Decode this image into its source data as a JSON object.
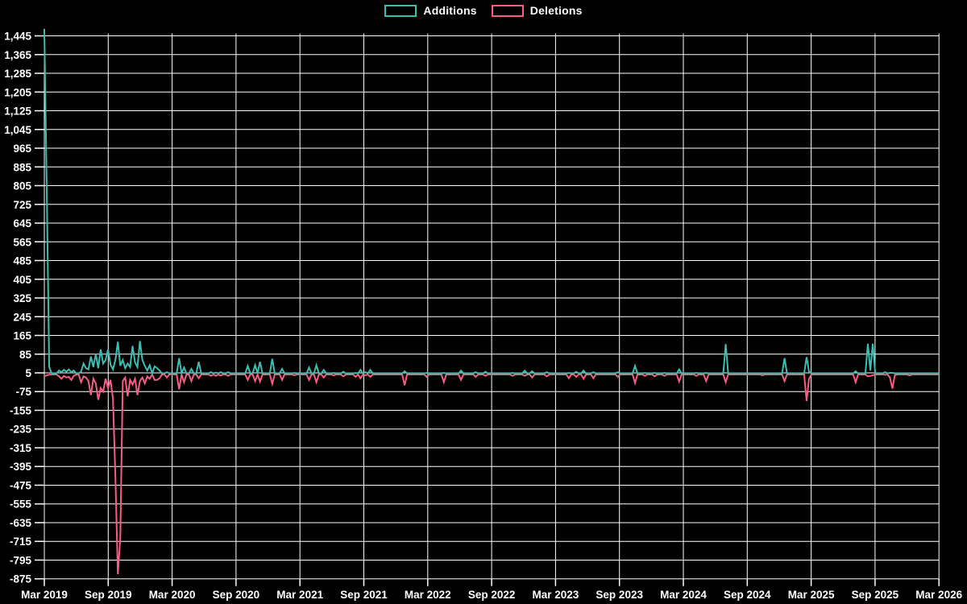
{
  "legend": {
    "additions_label": "Additions",
    "deletions_label": "Deletions"
  },
  "colors": {
    "background": "#000000",
    "grid": "#ffffff",
    "axis_text": "#ffffff",
    "additions": "#3dbdb2",
    "deletions": "#f85c86"
  },
  "chart_data": {
    "type": "line",
    "title": "",
    "xlabel": "",
    "ylabel": "",
    "legend_position": "top-center",
    "grid": true,
    "x_axis": {
      "tick_labels": [
        "Mar 2019",
        "Sep 2019",
        "Mar 2020",
        "Sep 2020",
        "Mar 2021",
        "Sep 2021",
        "Mar 2022",
        "Sep 2022",
        "Mar 2023",
        "Sep 2023",
        "Mar 2024",
        "Sep 2024",
        "Mar 2025",
        "Sep 2025",
        "Mar 2026"
      ],
      "unit": "weeks since Mar 2019",
      "weeks_total": 366
    },
    "y_axis": {
      "tick_labels": [
        "1,445",
        "1,365",
        "1,285",
        "1,205",
        "1,125",
        "1,045",
        "965",
        "885",
        "805",
        "725",
        "645",
        "565",
        "485",
        "405",
        "325",
        "245",
        "165",
        "85",
        "5",
        "-75",
        "-155",
        "-235",
        "-315",
        "-395",
        "-475",
        "-555",
        "-635",
        "-715",
        "-795",
        "-875"
      ],
      "tick_values": [
        1445,
        1365,
        1285,
        1205,
        1125,
        1045,
        965,
        885,
        805,
        725,
        645,
        565,
        485,
        405,
        325,
        245,
        165,
        85,
        5,
        -75,
        -155,
        -235,
        -315,
        -395,
        -475,
        -555,
        -635,
        -715,
        -795,
        -875
      ],
      "min": -875,
      "max": 1445,
      "step": 80
    },
    "series": [
      {
        "name": "Additions",
        "color": "#3dbdb2",
        "sign": "positive"
      },
      {
        "name": "Deletions",
        "color": "#f85c86",
        "sign": "negative"
      }
    ],
    "defaults": {
      "additions": 3,
      "deletions": -2
    },
    "points_format": [
      "week_index",
      "additions",
      "deletions"
    ],
    "points": [
      [
        0,
        1475,
        -10
      ],
      [
        1,
        780,
        -5
      ],
      [
        2,
        30,
        -3
      ],
      [
        6,
        15,
        -10
      ],
      [
        7,
        8,
        -20
      ],
      [
        8,
        18,
        -8
      ],
      [
        9,
        10,
        -15
      ],
      [
        10,
        20,
        -12
      ],
      [
        11,
        8,
        -25
      ],
      [
        12,
        15,
        -8
      ],
      [
        15,
        10,
        -35
      ],
      [
        16,
        45,
        -10
      ],
      [
        17,
        25,
        -15
      ],
      [
        18,
        20,
        -30
      ],
      [
        19,
        75,
        -90
      ],
      [
        20,
        30,
        -20
      ],
      [
        21,
        85,
        -40
      ],
      [
        22,
        25,
        -110
      ],
      [
        23,
        105,
        -60
      ],
      [
        24,
        45,
        -75
      ],
      [
        25,
        60,
        -20
      ],
      [
        26,
        105,
        -60
      ],
      [
        27,
        40,
        -25
      ],
      [
        28,
        20,
        -105
      ],
      [
        29,
        60,
        -440
      ],
      [
        30,
        138,
        -855
      ],
      [
        31,
        35,
        -700
      ],
      [
        32,
        60,
        -30
      ],
      [
        33,
        25,
        -15
      ],
      [
        34,
        45,
        -95
      ],
      [
        35,
        30,
        -25
      ],
      [
        36,
        120,
        -45
      ],
      [
        37,
        50,
        -20
      ],
      [
        38,
        30,
        -90
      ],
      [
        39,
        141,
        -30
      ],
      [
        40,
        60,
        -15
      ],
      [
        41,
        35,
        -40
      ],
      [
        42,
        15,
        -10
      ],
      [
        43,
        38,
        -20
      ],
      [
        45,
        33,
        -25
      ],
      [
        46,
        25,
        -25
      ],
      [
        47,
        15,
        -18
      ],
      [
        50,
        8,
        -15
      ],
      [
        55,
        68,
        -65
      ],
      [
        57,
        28,
        -35
      ],
      [
        60,
        22,
        -30
      ],
      [
        63,
        52,
        -18
      ],
      [
        68,
        8,
        -8
      ],
      [
        70,
        6,
        -8
      ],
      [
        72,
        8,
        -6
      ],
      [
        75,
        8,
        -8
      ],
      [
        83,
        35,
        -25
      ],
      [
        86,
        38,
        -30
      ],
      [
        88,
        52,
        -32
      ],
      [
        93,
        65,
        -42
      ],
      [
        97,
        22,
        -25
      ],
      [
        102,
        5,
        -5
      ],
      [
        108,
        28,
        -25
      ],
      [
        111,
        38,
        -35
      ],
      [
        114,
        18,
        -15
      ],
      [
        118,
        5,
        -5
      ],
      [
        122,
        10,
        -10
      ],
      [
        127,
        5,
        -12
      ],
      [
        129,
        18,
        -18
      ],
      [
        131,
        8,
        -5
      ],
      [
        133,
        18,
        -12
      ],
      [
        147,
        12,
        -48
      ],
      [
        156,
        5,
        -12
      ],
      [
        163,
        5,
        -35
      ],
      [
        170,
        15,
        -25
      ],
      [
        176,
        8,
        -12
      ],
      [
        180,
        10,
        -8
      ],
      [
        191,
        5,
        -8
      ],
      [
        196,
        15,
        -8
      ],
      [
        199,
        12,
        -15
      ],
      [
        205,
        8,
        -10
      ],
      [
        214,
        5,
        -18
      ],
      [
        217,
        10,
        -12
      ],
      [
        220,
        15,
        -20
      ],
      [
        224,
        8,
        -18
      ],
      [
        234,
        8,
        -12
      ],
      [
        241,
        35,
        -38
      ],
      [
        245,
        5,
        -8
      ],
      [
        249,
        5,
        -10
      ],
      [
        253,
        5,
        -8
      ],
      [
        259,
        20,
        -32
      ],
      [
        266,
        5,
        -8
      ],
      [
        270,
        5,
        -30
      ],
      [
        278,
        128,
        -35
      ],
      [
        293,
        3,
        -5
      ],
      [
        302,
        68,
        -30
      ],
      [
        311,
        72,
        -115
      ],
      [
        312,
        10,
        -20
      ],
      [
        331,
        12,
        -35
      ],
      [
        336,
        130,
        -10
      ],
      [
        337,
        15,
        -8
      ],
      [
        338,
        130,
        -5
      ],
      [
        343,
        8,
        -3
      ],
      [
        345,
        5,
        -15
      ],
      [
        346,
        5,
        -62
      ],
      [
        347,
        3,
        -5
      ],
      [
        353,
        3,
        -6
      ],
      [
        365,
        3,
        -2
      ]
    ]
  }
}
